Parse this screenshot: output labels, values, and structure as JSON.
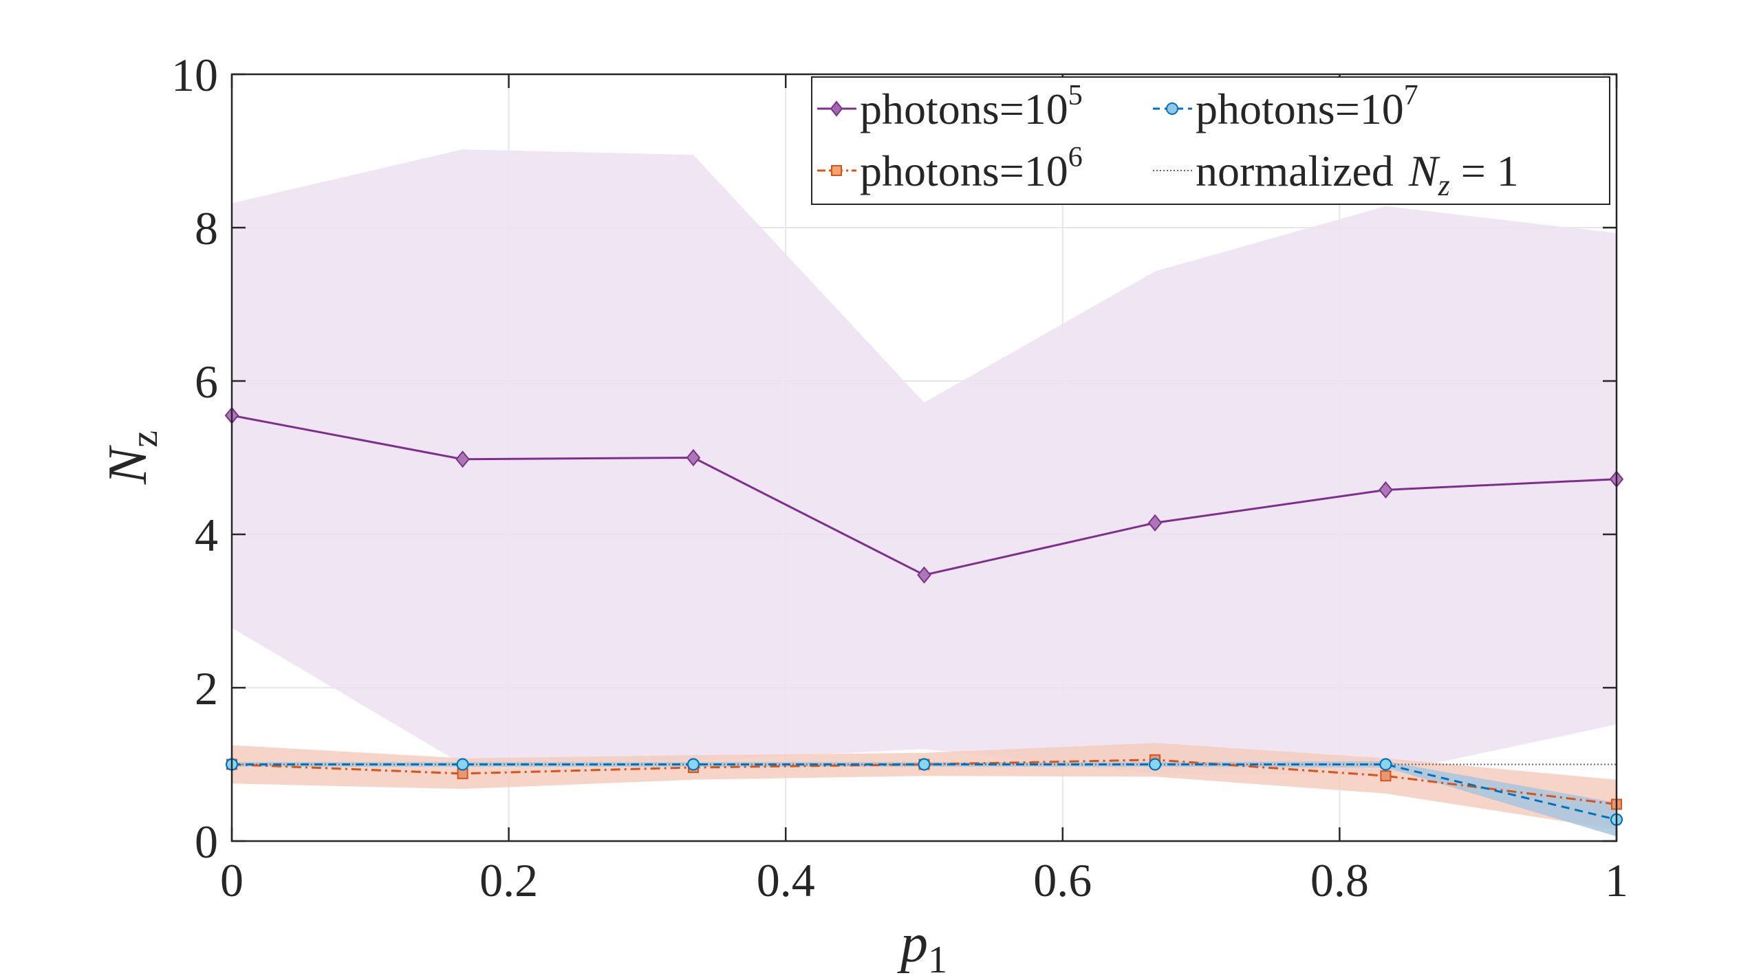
{
  "chart_data": {
    "type": "line",
    "title": "",
    "xlabel": "p",
    "xlabel_sub": "1",
    "ylabel": "N",
    "ylabel_sub": "z",
    "xlim": [
      0,
      1
    ],
    "ylim": [
      0,
      10
    ],
    "grid": true,
    "legend_location": "top-right",
    "x": [
      0,
      0.1667,
      0.3333,
      0.5,
      0.6667,
      0.8333,
      1
    ],
    "xticks": [
      0,
      0.2,
      0.4,
      0.6,
      0.8,
      1
    ],
    "xtick_labels": [
      "0",
      "0.2",
      "0.4",
      "0.6",
      "0.8",
      "1"
    ],
    "yticks": [
      0,
      2,
      4,
      6,
      8,
      10
    ],
    "ytick_labels": [
      "0",
      "2",
      "4",
      "6",
      "8",
      "10"
    ],
    "series": [
      {
        "name": "photons=10",
        "name_sup": "5",
        "color": "#7E2F8E",
        "band_color": "#EDE2F1",
        "marker": "diamond",
        "line_style": "solid",
        "values": [
          5.55,
          4.98,
          5.0,
          3.47,
          4.15,
          4.58,
          4.72
        ],
        "upper": [
          8.32,
          9.02,
          8.95,
          5.72,
          7.43,
          8.28,
          7.93
        ],
        "lower": [
          2.78,
          1.0,
          1.05,
          1.2,
          0.87,
          0.88,
          1.52
        ]
      },
      {
        "name": "photons=10",
        "name_sup": "6",
        "color": "#D95319",
        "band_color": "#F5CDBE",
        "marker": "square",
        "line_style": "dashdot",
        "values": [
          1.0,
          0.88,
          0.96,
          1.0,
          1.06,
          0.85,
          0.48
        ],
        "upper": [
          1.25,
          1.08,
          1.12,
          1.15,
          1.28,
          1.08,
          0.8
        ],
        "lower": [
          0.75,
          0.68,
          0.8,
          0.85,
          0.84,
          0.62,
          0.15
        ]
      },
      {
        "name": "photons=10",
        "name_sup": "7",
        "color": "#0072BD",
        "band_color": "#A7C6DE",
        "marker": "circle",
        "line_style": "dashed",
        "values": [
          1.0,
          1.0,
          1.0,
          1.0,
          1.0,
          1.0,
          0.28
        ],
        "upper": [
          1.03,
          1.03,
          1.03,
          1.03,
          1.03,
          1.04,
          0.5
        ],
        "lower": [
          0.97,
          0.97,
          0.97,
          0.97,
          0.97,
          0.96,
          0.06
        ]
      }
    ],
    "reference": {
      "name": "normalized",
      "math": "N",
      "math_sub": "z",
      "math_tail": " = 1",
      "value": 1,
      "color": "#666666",
      "line_style": "dotted"
    }
  }
}
